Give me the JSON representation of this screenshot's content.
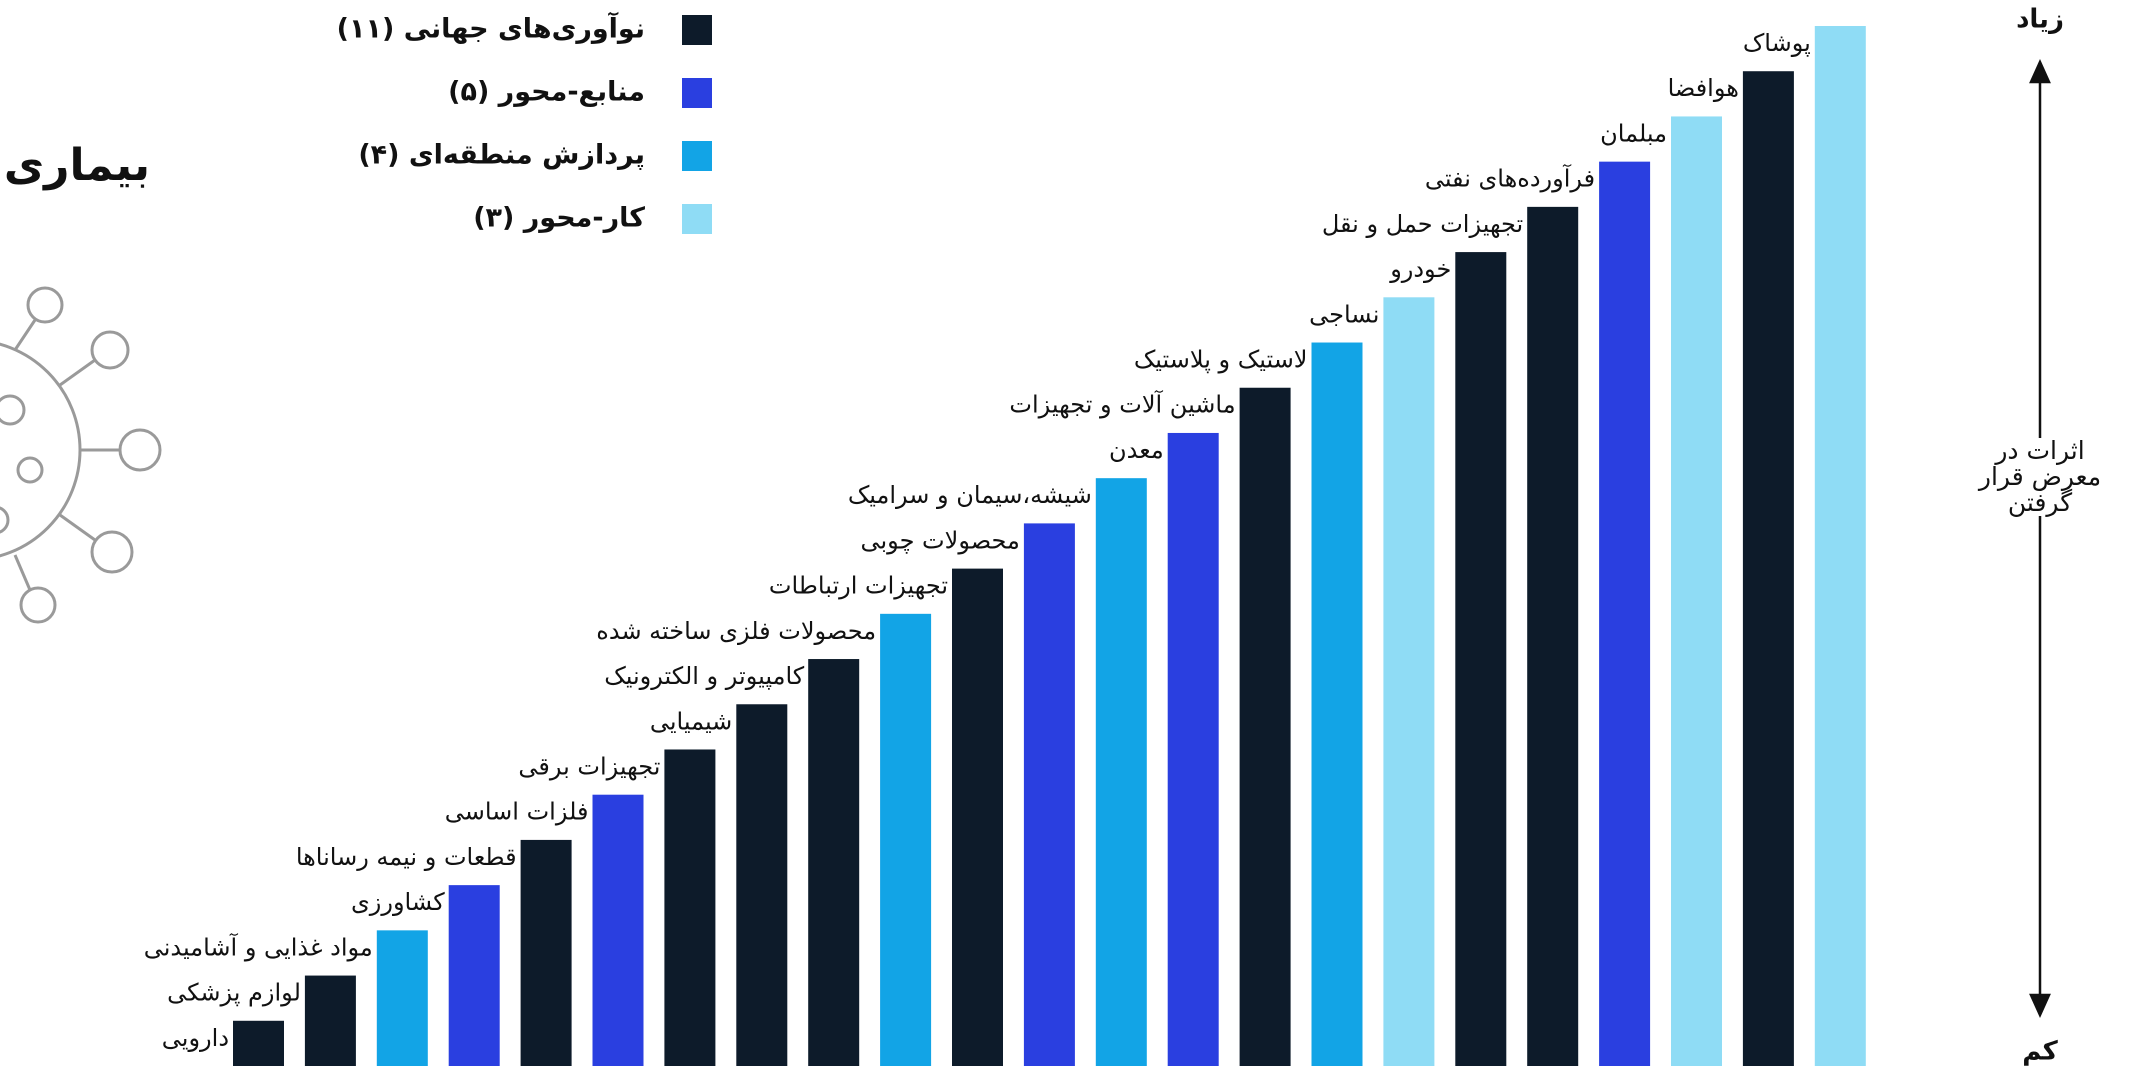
{
  "chart_data": {
    "type": "bar",
    "title": "بیماری",
    "axis_label": "اثرات در معرض قرار گرفتن",
    "axis_high": "زیاد",
    "axis_low": "کم",
    "categories": [
      "دارویی",
      "لوازم پزشکی",
      "مواد غذایی و آشامیدنی",
      "کشاورزی",
      "قطعات و نیمه رسانا‌ها",
      "فلزات اساسی",
      "تجهیزات برقی",
      "شیمیایی",
      "کامپیوتر و الکترونیک",
      "محصولات فلزی ساخته شده",
      "تجهیزات ارتباطات",
      "محصولات چوبی",
      "شیشه،سیمان و سرامیک",
      "معدن",
      "ماشین آلات و تجهیزات",
      "لاستیک و پلاستیک",
      "نساجی",
      "خودرو",
      "تجهیزات حمل و نقل",
      "فرآورده‌های نفتی",
      "مبلمان",
      "هوافضا",
      "پوشاک"
    ],
    "series": [
      {
        "name": "نوآوری‌های جهانی (۱۱)",
        "color": "#0d1b2a",
        "values": [
          1,
          2,
          null,
          null,
          5,
          null,
          7,
          8,
          9,
          null,
          11,
          null,
          null,
          null,
          15,
          null,
          null,
          18,
          19,
          null,
          null,
          22,
          null
        ]
      },
      {
        "name": "منابع-محور (۵)",
        "color": "#2a3fe0",
        "values": [
          null,
          null,
          null,
          4,
          null,
          6,
          null,
          null,
          null,
          null,
          null,
          12,
          null,
          14,
          null,
          null,
          null,
          null,
          null,
          20,
          null,
          null,
          null
        ]
      },
      {
        "name": "پردازش منطقه‌ای (۴)",
        "color": "#12a4e6",
        "values": [
          null,
          null,
          3,
          null,
          null,
          null,
          null,
          null,
          null,
          10,
          null,
          null,
          13,
          null,
          null,
          16,
          null,
          null,
          null,
          null,
          null,
          null,
          null
        ]
      },
      {
        "name": "کار-محور (۳)",
        "color": "#8fdcf5",
        "values": [
          null,
          null,
          null,
          null,
          null,
          null,
          null,
          null,
          null,
          null,
          null,
          null,
          null,
          null,
          null,
          null,
          17,
          null,
          null,
          null,
          21,
          null,
          23
        ]
      }
    ]
  }
}
